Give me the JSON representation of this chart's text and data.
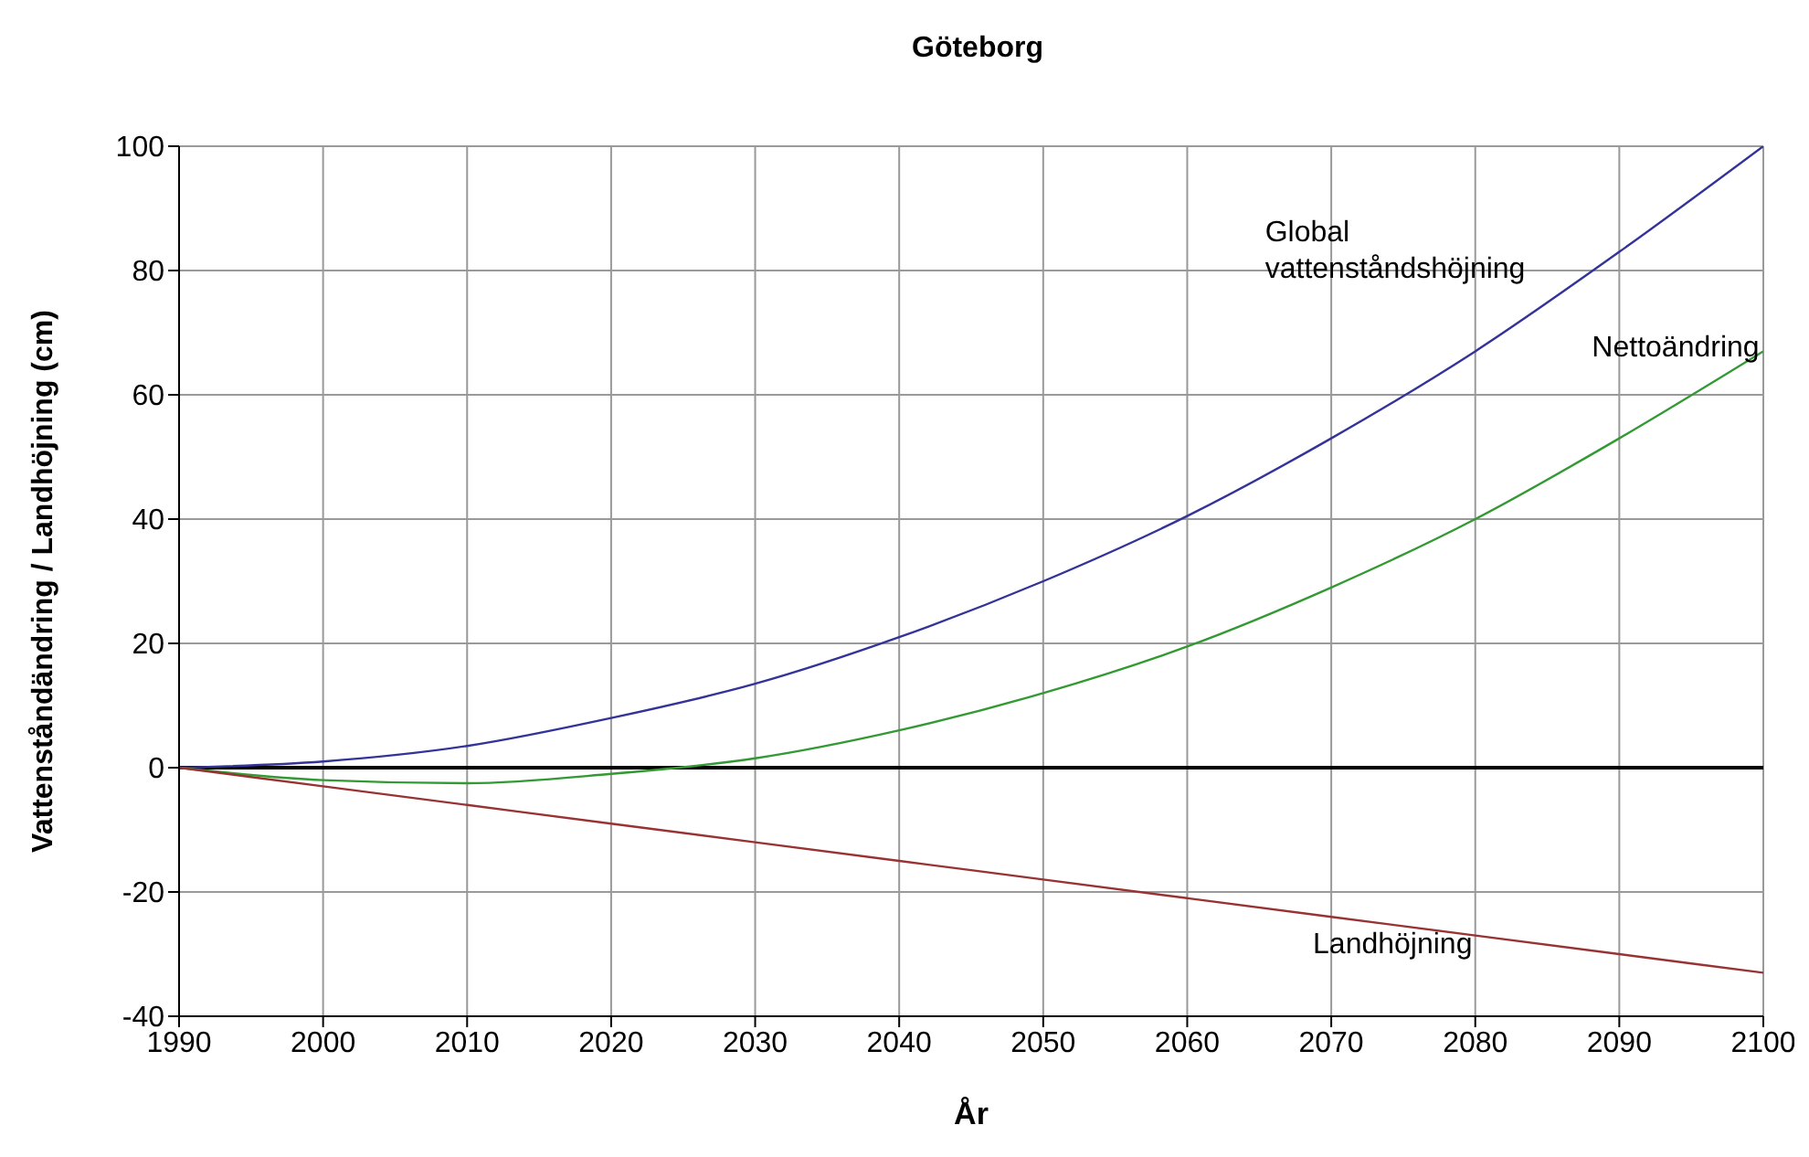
{
  "chart_data": {
    "type": "line",
    "title": "Göteborg",
    "xlabel": "År",
    "ylabel": "Vattenståndändring / Landhöjning (cm)",
    "x": [
      1990,
      2000,
      2010,
      2020,
      2030,
      2040,
      2050,
      2060,
      2070,
      2080,
      2090,
      2100
    ],
    "series": [
      {
        "name": "Global vattenståndshöjning",
        "color": "#333399",
        "values": [
          0,
          1,
          3.5,
          8,
          13.5,
          21,
          30,
          40.5,
          53,
          67,
          83,
          100
        ]
      },
      {
        "name": "Nettoändring",
        "color": "#339933",
        "values": [
          0,
          -2,
          -2.5,
          -1,
          1.5,
          6,
          12,
          19.5,
          29,
          40,
          53,
          67
        ]
      },
      {
        "name": "Landhöjning",
        "color": "#993333",
        "values": [
          0,
          -3,
          -6,
          -9,
          -12,
          -15,
          -18,
          -21,
          -24,
          -27,
          -30,
          -33
        ]
      }
    ],
    "xlim": [
      1990,
      2100
    ],
    "xticks": [
      1990,
      2000,
      2010,
      2020,
      2030,
      2040,
      2050,
      2060,
      2070,
      2080,
      2090,
      2100
    ],
    "ylim": [
      -40,
      100
    ],
    "yticks": [
      -40,
      -20,
      0,
      20,
      40,
      60,
      80,
      100
    ],
    "ref_lines": [
      {
        "axis": "y",
        "value": 0,
        "color": "#000000"
      }
    ],
    "grid": true,
    "legend": false,
    "marker": "none",
    "line_style": "solid"
  }
}
